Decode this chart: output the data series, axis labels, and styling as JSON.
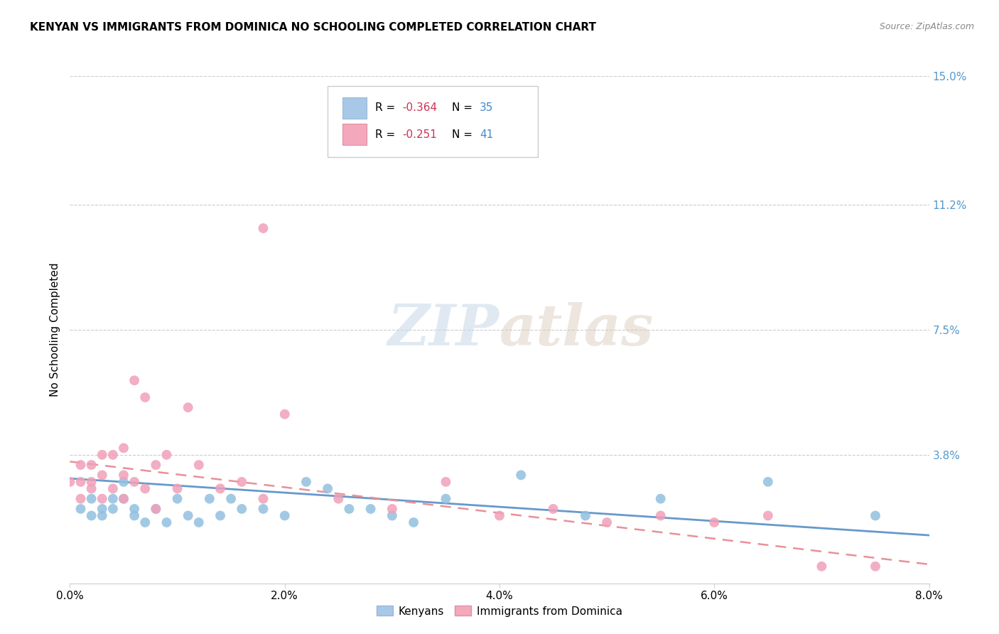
{
  "title": "KENYAN VS IMMIGRANTS FROM DOMINICA NO SCHOOLING COMPLETED CORRELATION CHART",
  "source": "Source: ZipAtlas.com",
  "ylabel": "No Schooling Completed",
  "xlim": [
    0.0,
    0.08
  ],
  "ylim": [
    0.0,
    0.15
  ],
  "xtick_labels": [
    "0.0%",
    "2.0%",
    "4.0%",
    "6.0%",
    "8.0%"
  ],
  "xtick_values": [
    0.0,
    0.02,
    0.04,
    0.06,
    0.08
  ],
  "ytick_labels_right": [
    "15.0%",
    "11.2%",
    "7.5%",
    "3.8%"
  ],
  "ytick_values_right": [
    0.15,
    0.112,
    0.075,
    0.038
  ],
  "watermark_zip": "ZIP",
  "watermark_atlas": "atlas",
  "kenyan_color": "#92c0e0",
  "dominica_color": "#f0a0b8",
  "kenyan_line_color": "#6699cc",
  "dominica_line_color": "#e8909a",
  "legend_box_color": "#a8c8e8",
  "legend_box_color2": "#f4a8bc",
  "kenyan_x": [
    0.001,
    0.002,
    0.002,
    0.003,
    0.003,
    0.004,
    0.004,
    0.005,
    0.005,
    0.006,
    0.006,
    0.007,
    0.008,
    0.009,
    0.01,
    0.011,
    0.012,
    0.013,
    0.014,
    0.015,
    0.016,
    0.018,
    0.02,
    0.022,
    0.024,
    0.026,
    0.028,
    0.03,
    0.032,
    0.035,
    0.042,
    0.048,
    0.055,
    0.065,
    0.075
  ],
  "kenyan_y": [
    0.022,
    0.02,
    0.025,
    0.02,
    0.022,
    0.025,
    0.022,
    0.03,
    0.025,
    0.022,
    0.02,
    0.018,
    0.022,
    0.018,
    0.025,
    0.02,
    0.018,
    0.025,
    0.02,
    0.025,
    0.022,
    0.022,
    0.02,
    0.03,
    0.028,
    0.022,
    0.022,
    0.02,
    0.018,
    0.025,
    0.032,
    0.02,
    0.025,
    0.03,
    0.02
  ],
  "dominica_x": [
    0.0,
    0.001,
    0.001,
    0.001,
    0.002,
    0.002,
    0.002,
    0.003,
    0.003,
    0.003,
    0.004,
    0.004,
    0.005,
    0.005,
    0.005,
    0.006,
    0.006,
    0.007,
    0.007,
    0.008,
    0.008,
    0.009,
    0.01,
    0.011,
    0.012,
    0.014,
    0.016,
    0.018,
    0.02,
    0.025,
    0.018,
    0.03,
    0.035,
    0.04,
    0.045,
    0.05,
    0.055,
    0.06,
    0.065,
    0.07,
    0.075
  ],
  "dominica_y": [
    0.03,
    0.035,
    0.03,
    0.025,
    0.035,
    0.03,
    0.028,
    0.038,
    0.032,
    0.025,
    0.038,
    0.028,
    0.04,
    0.032,
    0.025,
    0.06,
    0.03,
    0.055,
    0.028,
    0.035,
    0.022,
    0.038,
    0.028,
    0.052,
    0.035,
    0.028,
    0.03,
    0.025,
    0.05,
    0.025,
    0.105,
    0.022,
    0.03,
    0.02,
    0.022,
    0.018,
    0.02,
    0.018,
    0.02,
    0.005,
    0.005
  ],
  "regline_x_start": 0.0,
  "regline_x_end": 0.08
}
